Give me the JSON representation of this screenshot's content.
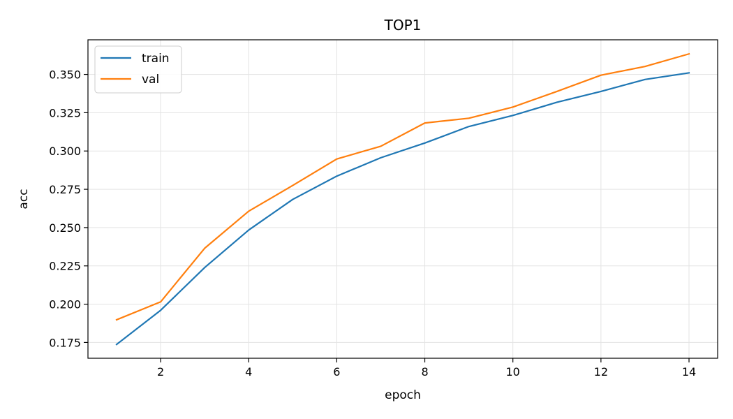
{
  "chart_data": {
    "type": "line",
    "title": "TOP1",
    "xlabel": "epoch",
    "ylabel": "acc",
    "xlim": [
      0.35,
      14.65
    ],
    "ylim": [
      0.1647,
      0.3726
    ],
    "xticks": [
      2,
      4,
      6,
      8,
      10,
      12,
      14
    ],
    "xtick_labels": [
      "2",
      "4",
      "6",
      "8",
      "10",
      "12",
      "14"
    ],
    "yticks": [
      0.175,
      0.2,
      0.225,
      0.25,
      0.275,
      0.3,
      0.325,
      0.35
    ],
    "ytick_labels": [
      "0.175",
      "0.200",
      "0.225",
      "0.250",
      "0.275",
      "0.300",
      "0.325",
      "0.350"
    ],
    "grid": true,
    "legend_position": "top-left",
    "x": [
      1,
      2,
      3,
      4,
      5,
      6,
      7,
      8,
      9,
      10,
      11,
      12,
      13,
      14
    ],
    "series": [
      {
        "name": "train",
        "color": "#1f77b4",
        "values": [
          0.1737,
          0.196,
          0.2239,
          0.2484,
          0.2684,
          0.2836,
          0.2956,
          0.3052,
          0.316,
          0.3232,
          0.3318,
          0.3389,
          0.3467,
          0.351
        ]
      },
      {
        "name": "val",
        "color": "#ff7f0e",
        "values": [
          0.1898,
          0.2015,
          0.2365,
          0.2607,
          0.2775,
          0.2948,
          0.3031,
          0.3183,
          0.3214,
          0.3287,
          0.3389,
          0.3495,
          0.3552,
          0.3634
        ]
      }
    ]
  }
}
